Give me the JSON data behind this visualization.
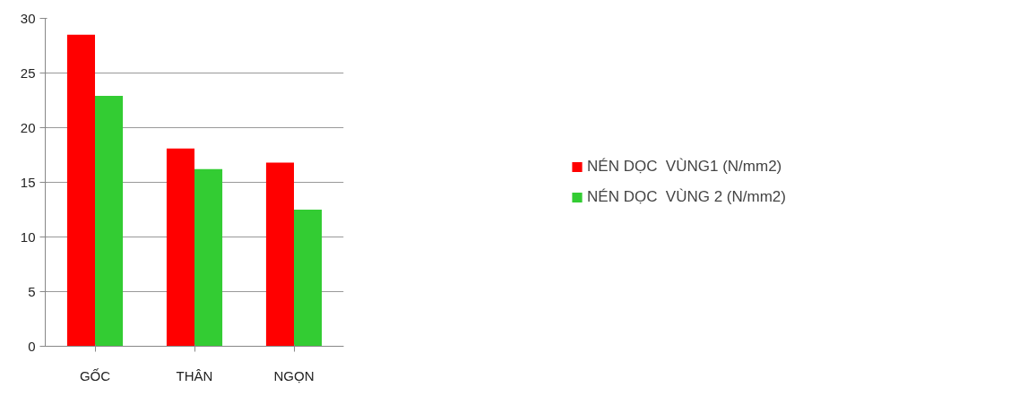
{
  "chart_data": {
    "type": "bar",
    "categories": [
      "GỐC",
      "THÂN",
      "NGỌN"
    ],
    "series": [
      {
        "name": "NÉN DỌC  VÙNG1 (N/mm2)",
        "color": "#ff0000",
        "values": [
          28.5,
          18.1,
          16.8
        ]
      },
      {
        "name": "NÉN DỌC  VÙNG 2 (N/mm2)",
        "color": "#33cc33",
        "values": [
          22.9,
          16.2,
          12.5
        ]
      }
    ],
    "ylim": [
      0,
      30
    ],
    "yticks": [
      0,
      5,
      10,
      15,
      20,
      25,
      30
    ],
    "grid": "y",
    "legend": "right"
  }
}
